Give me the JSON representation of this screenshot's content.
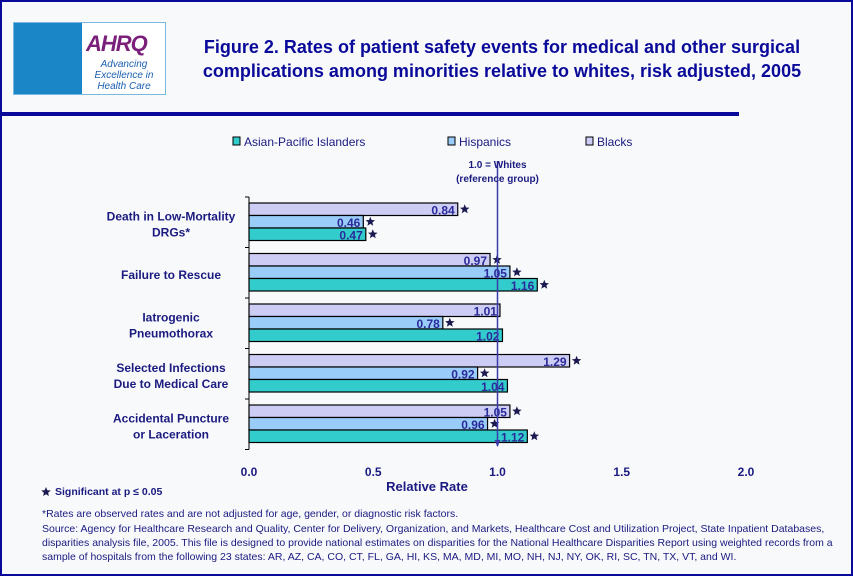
{
  "header": {
    "title": "Figure 2. Rates of patient safety events for medical and other surgical complications among minorities relative to whites, risk adjusted, 2005",
    "logo_text": "AHRQ",
    "logo_tagline": "Advancing Excellence in Health Care"
  },
  "chart_data": {
    "type": "bar",
    "orientation": "horizontal",
    "categories": [
      "Death in Low-Mortality DRGs*",
      "Failure to Rescue",
      "Iatrogenic Pneumothorax",
      "Selected Infections Due to Medical Care",
      "Accidental Puncture or Laceration"
    ],
    "series": [
      {
        "name": "Blacks",
        "color": "#ccccf4",
        "values": [
          0.84,
          0.97,
          1.01,
          1.29,
          1.05
        ],
        "significant": [
          true,
          true,
          false,
          true,
          true
        ]
      },
      {
        "name": "Hispanics",
        "color": "#99ccf8",
        "values": [
          0.46,
          1.05,
          0.78,
          0.92,
          0.96
        ],
        "significant": [
          true,
          true,
          true,
          true,
          true
        ]
      },
      {
        "name": "Asian-Pacific Islanders",
        "color": "#33cccc",
        "values": [
          0.47,
          1.16,
          1.02,
          1.04,
          1.12
        ],
        "significant": [
          true,
          true,
          false,
          false,
          true
        ]
      }
    ],
    "legend_order": [
      "Asian-Pacific Islanders",
      "Hispanics",
      "Blacks"
    ],
    "legend_placement": "top",
    "xlabel": "Relative Rate",
    "xlim": [
      0,
      2.0
    ],
    "xticks": [
      "0.0",
      "0.5",
      "1.0",
      "1.5",
      "2.0"
    ],
    "reference_line": {
      "value": 1.0,
      "label": "1.0 = Whites (reference group)"
    },
    "significance_note": "Significant at p ≤ 0.05"
  },
  "footnotes": {
    "rates": "*Rates are observed rates and are not adjusted for age, gender, or diagnostic risk factors.",
    "source": "Source: Agency for Healthcare Research and Quality, Center for Delivery, Organization, and Markets, Healthcare Cost and Utilization Project, State Inpatient Databases, disparities analysis file, 2005. This file is designed to provide national estimates on disparities for the National Healthcare Disparities Report using weighted records from a sample of hospitals from the following 23 states: AR, AZ, CA, CO, CT, FL, GA, HI, KS, MA, MD, MI, MO, NH, NJ, NY, OK, RI, SC, TN, TX, VT, and WI."
  }
}
